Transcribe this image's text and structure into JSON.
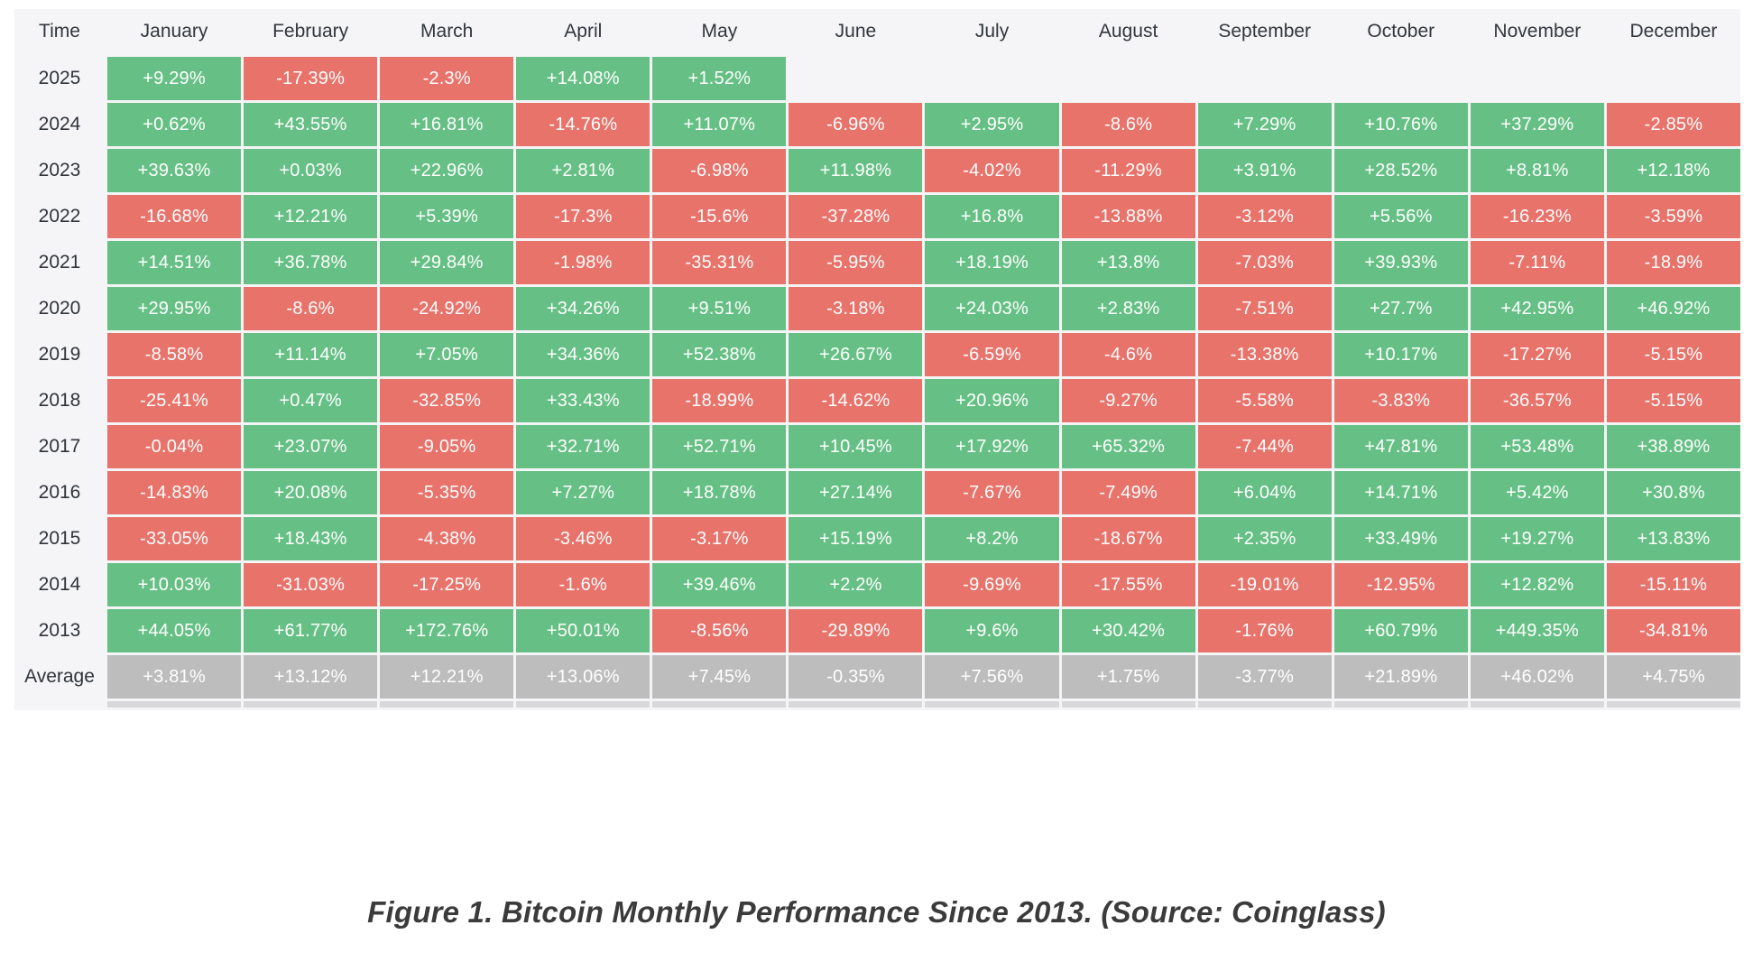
{
  "chart_data": {
    "type": "heatmap",
    "title": "Bitcoin Monthly Performance Since 2013",
    "corner_label": "Time",
    "columns": [
      "January",
      "February",
      "March",
      "April",
      "May",
      "June",
      "July",
      "August",
      "September",
      "October",
      "November",
      "December"
    ],
    "rows": [
      "2025",
      "2024",
      "2023",
      "2022",
      "2021",
      "2020",
      "2019",
      "2018",
      "2017",
      "2016",
      "2015",
      "2014",
      "2013",
      "Average"
    ],
    "values_pct": [
      [
        9.29,
        -17.39,
        -2.3,
        14.08,
        1.52,
        null,
        null,
        null,
        null,
        null,
        null,
        null
      ],
      [
        0.62,
        43.55,
        16.81,
        -14.76,
        11.07,
        -6.96,
        2.95,
        -8.6,
        7.29,
        10.76,
        37.29,
        -2.85
      ],
      [
        39.63,
        0.03,
        22.96,
        2.81,
        -6.98,
        11.98,
        -4.02,
        -11.29,
        3.91,
        28.52,
        8.81,
        12.18
      ],
      [
        -16.68,
        12.21,
        5.39,
        -17.3,
        -15.6,
        -37.28,
        16.8,
        -13.88,
        -3.12,
        5.56,
        -16.23,
        -3.59
      ],
      [
        14.51,
        36.78,
        29.84,
        -1.98,
        -35.31,
        -5.95,
        18.19,
        13.8,
        -7.03,
        39.93,
        -7.11,
        -18.9
      ],
      [
        29.95,
        -8.6,
        -24.92,
        34.26,
        9.51,
        -3.18,
        24.03,
        2.83,
        -7.51,
        27.7,
        42.95,
        46.92
      ],
      [
        -8.58,
        11.14,
        7.05,
        34.36,
        52.38,
        26.67,
        -6.59,
        -4.6,
        -13.38,
        10.17,
        -17.27,
        -5.15
      ],
      [
        -25.41,
        0.47,
        -32.85,
        33.43,
        -18.99,
        -14.62,
        20.96,
        -9.27,
        -5.58,
        -3.83,
        -36.57,
        -5.15
      ],
      [
        -0.04,
        23.07,
        -9.05,
        32.71,
        52.71,
        10.45,
        17.92,
        65.32,
        -7.44,
        47.81,
        53.48,
        38.89
      ],
      [
        -14.83,
        20.08,
        -5.35,
        7.27,
        18.78,
        27.14,
        -7.67,
        -7.49,
        6.04,
        14.71,
        5.42,
        30.8
      ],
      [
        -33.05,
        18.43,
        -4.38,
        -3.46,
        -3.17,
        15.19,
        8.2,
        -18.67,
        2.35,
        33.49,
        19.27,
        13.83
      ],
      [
        10.03,
        -31.03,
        -17.25,
        -1.6,
        39.46,
        2.2,
        -9.69,
        -17.55,
        -19.01,
        -12.95,
        12.82,
        -15.11
      ],
      [
        44.05,
        61.77,
        172.76,
        50.01,
        -8.56,
        -29.89,
        9.6,
        30.42,
        -1.76,
        60.79,
        449.35,
        -34.81
      ],
      [
        3.81,
        13.12,
        12.21,
        13.06,
        7.45,
        -0.35,
        7.56,
        1.75,
        -3.77,
        21.89,
        46.02,
        4.75
      ]
    ],
    "value_format": "signed percent, e.g. +9.29% / -17.39%",
    "layout": {
      "average_row_label": "Average",
      "empty_cells": "2025 June-December"
    }
  },
  "caption": "Figure 1. Bitcoin Monthly Performance Since 2013. (Source: Coinglass)",
  "colors": {
    "positive": "#66c085",
    "negative": "#e7736b",
    "average_row": "#bdbdbd",
    "table_background": "#f5f5f7",
    "header_text": "#32363e",
    "cell_text": "#ffffff",
    "caption_text": "#3b3b3b"
  }
}
